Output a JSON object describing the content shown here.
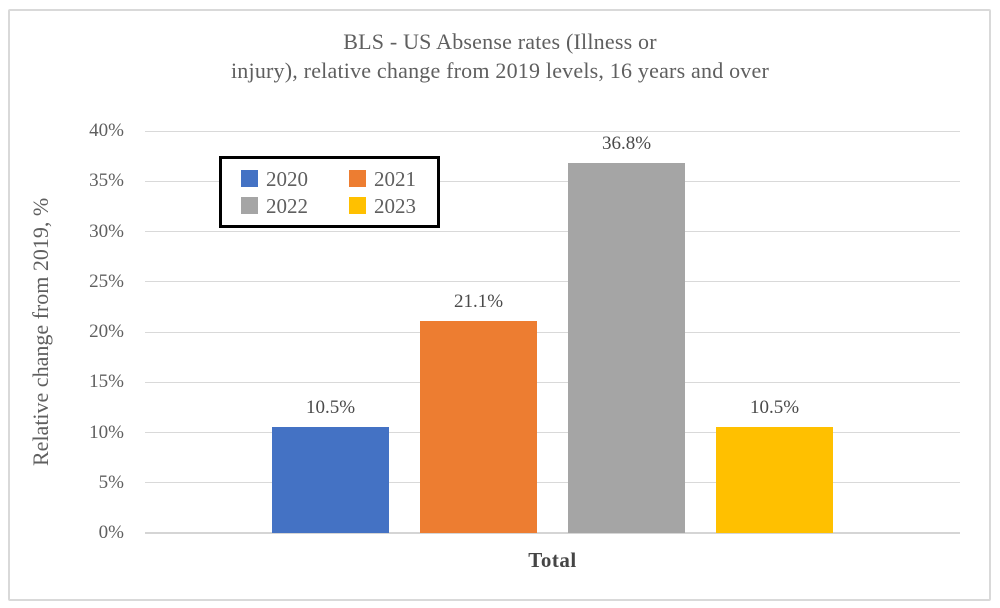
{
  "chart": {
    "title_line1": "BLS - US Absense rates (Illness or",
    "title_line2": "injury), relative change from 2019 levels, 16 years and over",
    "y_axis_title": "Relative change from 2019, %"
  },
  "chart_data": {
    "type": "bar",
    "title": "BLS - US Absense rates (Illness or injury), relative change from 2019 levels, 16 years and over",
    "categories": [
      "Total"
    ],
    "series": [
      {
        "name": "2020",
        "values": [
          10.5
        ],
        "color": "#4472C4",
        "data_label": "10.5%"
      },
      {
        "name": "2021",
        "values": [
          21.1
        ],
        "color": "#ED7D31",
        "data_label": "21.1%"
      },
      {
        "name": "2022",
        "values": [
          36.8
        ],
        "color": "#A5A5A5",
        "data_label": "36.8%"
      },
      {
        "name": "2023",
        "values": [
          10.5
        ],
        "color": "#FFC000",
        "data_label": "10.5%"
      }
    ],
    "xlabel": "",
    "ylabel": "Relative change from 2019, %",
    "ylim": [
      0,
      40
    ],
    "ytick_step": 5,
    "ytick_suffix": "%",
    "grid": true,
    "legend_position": "inside-top-left",
    "colors": {
      "gridline": "#D9D9D9",
      "axis_text": "#5F5F5F",
      "title_text": "#5F5F5F",
      "data_label_text": "#4A4A4A",
      "legend_border": "#000000",
      "chart_border": "#D9D9D9"
    }
  }
}
